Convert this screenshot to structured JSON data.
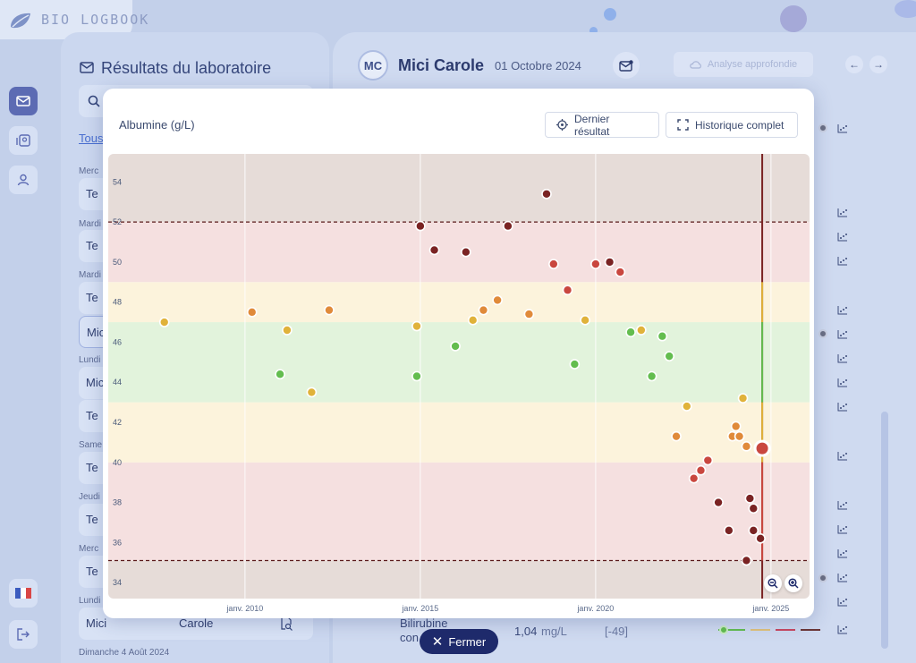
{
  "app": {
    "logo_text": "BIO LOGBOOK"
  },
  "left_panel": {
    "title": "Résultats du laboratoire",
    "tous_link": "Tous",
    "groups": [
      {
        "day": "Merc",
        "item": "Te"
      },
      {
        "day": "Mardi",
        "item": "Te"
      },
      {
        "day": "Mardi",
        "item": "Te"
      },
      {
        "day": "",
        "item": "Mic"
      },
      {
        "day": "Lundi",
        "item": "Mic"
      },
      {
        "day": "",
        "item": "Te"
      },
      {
        "day": "Same",
        "item": "Te"
      },
      {
        "day": "Jeudi",
        "item": "Te"
      },
      {
        "day": "Merc",
        "item": "Te"
      }
    ],
    "last_day": "Lundi",
    "last_item_first": "Mici",
    "last_item_last": "Carole",
    "bottom_day": "Dimanche 4 Août 2024"
  },
  "patient": {
    "initials": "MC",
    "name": "Mici Carole",
    "date": "01 Octobre 2024",
    "analyse_button": "Analyse approfondie"
  },
  "bottom_row": {
    "label_line1": "Bilirubine",
    "label_line2": "con",
    "value": "1,04",
    "unit": "mg/L",
    "range": "[-49]"
  },
  "modal": {
    "title": "Albumine (g/L)",
    "last_result_button": "Dernier résultat",
    "history_button": "Historique complet",
    "close_button": "Fermer"
  },
  "colors": {
    "normal": "#63bd4f",
    "warning": "#e0b23a",
    "warning_strong": "#e08a3a",
    "danger": "#c9473f",
    "danger_dark": "#7a2323",
    "brand": "#1e2a6b"
  },
  "chart_data": {
    "type": "scatter",
    "title": "Albumine (g/L)",
    "xlabel": "",
    "ylabel": "",
    "x_ticks": [
      "janv. 2010",
      "janv. 2015",
      "janv. 2020",
      "janv. 2025"
    ],
    "y_ticks": [
      34,
      36,
      38,
      40,
      42,
      44,
      46,
      48,
      50,
      52,
      54
    ],
    "xlim": [
      2006.1,
      2026.1
    ],
    "ylim": [
      33.2,
      55.4
    ],
    "bands": [
      {
        "name": "critical-low",
        "from": 33.2,
        "to": 35.1,
        "color": "#e6dcd8"
      },
      {
        "name": "low",
        "from": 35.1,
        "to": 40.0,
        "color": "#f5e0e0"
      },
      {
        "name": "low-warning",
        "from": 40.0,
        "to": 43.0,
        "color": "#fcf3dc"
      },
      {
        "name": "normal",
        "from": 43.0,
        "to": 47.0,
        "color": "#e2f3dc"
      },
      {
        "name": "high-warning",
        "from": 47.0,
        "to": 49.0,
        "color": "#fcf3dc"
      },
      {
        "name": "high",
        "from": 49.0,
        "to": 52.0,
        "color": "#f5e0e0"
      },
      {
        "name": "critical-high",
        "from": 52.0,
        "to": 55.4,
        "color": "#e6dcd8"
      }
    ],
    "threshold_lines": [
      35.1,
      52.0
    ],
    "current_date": 2024.75,
    "points": [
      {
        "x": 2007.7,
        "y": 47.0,
        "c": "warn"
      },
      {
        "x": 2010.2,
        "y": 47.5,
        "c": "warns"
      },
      {
        "x": 2011.0,
        "y": 44.4,
        "c": "norm"
      },
      {
        "x": 2011.2,
        "y": 46.6,
        "c": "warn"
      },
      {
        "x": 2011.9,
        "y": 43.5,
        "c": "warn"
      },
      {
        "x": 2012.4,
        "y": 47.6,
        "c": "warns"
      },
      {
        "x": 2014.9,
        "y": 46.8,
        "c": "warn"
      },
      {
        "x": 2014.9,
        "y": 44.3,
        "c": "norm"
      },
      {
        "x": 2015.0,
        "y": 51.8,
        "c": "dark"
      },
      {
        "x": 2015.4,
        "y": 50.6,
        "c": "dark"
      },
      {
        "x": 2016.0,
        "y": 45.8,
        "c": "norm"
      },
      {
        "x": 2016.3,
        "y": 50.5,
        "c": "dark"
      },
      {
        "x": 2016.5,
        "y": 47.1,
        "c": "warn"
      },
      {
        "x": 2016.8,
        "y": 47.6,
        "c": "warns"
      },
      {
        "x": 2017.2,
        "y": 48.1,
        "c": "warns"
      },
      {
        "x": 2017.5,
        "y": 51.8,
        "c": "dark"
      },
      {
        "x": 2018.1,
        "y": 47.4,
        "c": "warns"
      },
      {
        "x": 2018.6,
        "y": 53.4,
        "c": "dark"
      },
      {
        "x": 2018.8,
        "y": 49.9,
        "c": "dang"
      },
      {
        "x": 2019.2,
        "y": 48.6,
        "c": "dang"
      },
      {
        "x": 2019.4,
        "y": 44.9,
        "c": "norm"
      },
      {
        "x": 2019.7,
        "y": 47.1,
        "c": "warn"
      },
      {
        "x": 2020.0,
        "y": 49.9,
        "c": "dang"
      },
      {
        "x": 2020.4,
        "y": 50.0,
        "c": "dark"
      },
      {
        "x": 2020.7,
        "y": 49.5,
        "c": "dang"
      },
      {
        "x": 2021.0,
        "y": 46.5,
        "c": "norm"
      },
      {
        "x": 2021.3,
        "y": 46.6,
        "c": "warn"
      },
      {
        "x": 2021.6,
        "y": 44.3,
        "c": "norm"
      },
      {
        "x": 2021.9,
        "y": 46.3,
        "c": "norm"
      },
      {
        "x": 2022.1,
        "y": 45.3,
        "c": "norm"
      },
      {
        "x": 2022.3,
        "y": 41.3,
        "c": "warns"
      },
      {
        "x": 2022.6,
        "y": 42.8,
        "c": "warn"
      },
      {
        "x": 2022.8,
        "y": 39.2,
        "c": "dang"
      },
      {
        "x": 2023.0,
        "y": 39.6,
        "c": "dang"
      },
      {
        "x": 2023.2,
        "y": 40.1,
        "c": "dang"
      },
      {
        "x": 2023.5,
        "y": 38.0,
        "c": "dark"
      },
      {
        "x": 2023.8,
        "y": 36.6,
        "c": "dark"
      },
      {
        "x": 2023.9,
        "y": 41.3,
        "c": "warns"
      },
      {
        "x": 2024.0,
        "y": 41.8,
        "c": "warns"
      },
      {
        "x": 2024.1,
        "y": 41.3,
        "c": "warns"
      },
      {
        "x": 2024.2,
        "y": 43.2,
        "c": "warn"
      },
      {
        "x": 2024.3,
        "y": 40.8,
        "c": "warns"
      },
      {
        "x": 2024.4,
        "y": 38.2,
        "c": "dark"
      },
      {
        "x": 2024.5,
        "y": 37.7,
        "c": "dark"
      },
      {
        "x": 2024.5,
        "y": 36.6,
        "c": "dark"
      },
      {
        "x": 2024.7,
        "y": 36.2,
        "c": "dark"
      },
      {
        "x": 2024.3,
        "y": 35.1,
        "c": "dark"
      },
      {
        "x": 2024.75,
        "y": 40.7,
        "c": "current"
      }
    ]
  }
}
